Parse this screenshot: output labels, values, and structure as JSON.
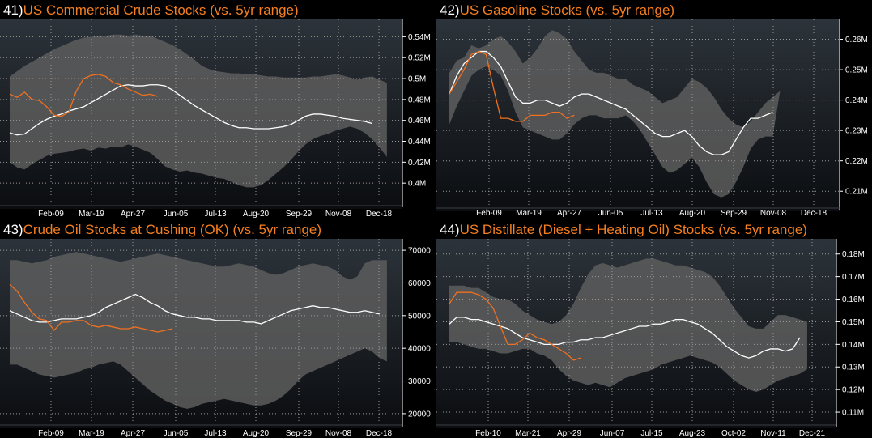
{
  "colors": {
    "band": "#5d5d5d",
    "avg": "#ffffff",
    "current": "#f07020",
    "title": "#f57f1f",
    "grid": "#9a9a9a"
  },
  "chart_data": [
    {
      "number": "41)",
      "title": "US Commercial Crude Stocks (vs. 5yr range)",
      "type": "area",
      "x_labels": [
        "Feb-09",
        "Mar-19",
        "Apr-27",
        "Jun-05",
        "Jul-13",
        "Aug-20",
        "Sep-29",
        "Nov-08",
        "Dec-18"
      ],
      "y_ticks": [
        0.4,
        0.42,
        0.44,
        0.46,
        0.48,
        0.5,
        0.52,
        0.54
      ],
      "y_tick_labels": [
        "0.4M",
        "0.42M",
        "0.44M",
        "0.46M",
        "0.48M",
        "0.5M",
        "0.52M",
        "0.54M"
      ],
      "ylim": [
        0.38,
        0.555
      ],
      "xlim": [
        0,
        52
      ],
      "band_high": [
        0.502,
        0.507,
        0.512,
        0.516,
        0.52,
        0.524,
        0.528,
        0.531,
        0.534,
        0.537,
        0.539,
        0.54,
        0.541,
        0.541,
        0.542,
        0.542,
        0.541,
        0.542,
        0.541,
        0.541,
        0.538,
        0.535,
        0.532,
        0.528,
        0.523,
        0.518,
        0.512,
        0.509,
        0.507,
        0.506,
        0.505,
        0.505,
        0.504,
        0.504,
        0.503,
        0.502,
        0.502,
        0.501,
        0.501,
        0.501,
        0.501,
        0.502,
        0.502,
        0.503,
        0.504,
        0.503,
        0.501,
        0.499,
        0.501,
        0.502,
        0.499,
        0.496
      ],
      "band_low": [
        0.42,
        0.415,
        0.413,
        0.418,
        0.422,
        0.426,
        0.428,
        0.429,
        0.43,
        0.432,
        0.433,
        0.431,
        0.434,
        0.433,
        0.435,
        0.434,
        0.437,
        0.435,
        0.432,
        0.429,
        0.423,
        0.416,
        0.413,
        0.411,
        0.412,
        0.41,
        0.409,
        0.407,
        0.405,
        0.404,
        0.401,
        0.398,
        0.396,
        0.396,
        0.398,
        0.403,
        0.409,
        0.415,
        0.422,
        0.43,
        0.437,
        0.442,
        0.445,
        0.447,
        0.45,
        0.452,
        0.454,
        0.452,
        0.448,
        0.442,
        0.434,
        0.425
      ],
      "avg": [
        0.448,
        0.446,
        0.447,
        0.452,
        0.457,
        0.461,
        0.464,
        0.466,
        0.469,
        0.471,
        0.473,
        0.477,
        0.481,
        0.485,
        0.489,
        0.493,
        0.494,
        0.493,
        0.493,
        0.494,
        0.494,
        0.493,
        0.489,
        0.484,
        0.479,
        0.474,
        0.47,
        0.466,
        0.462,
        0.458,
        0.455,
        0.453,
        0.453,
        0.452,
        0.452,
        0.452,
        0.453,
        0.454,
        0.456,
        0.46,
        0.464,
        0.466,
        0.466,
        0.465,
        0.464,
        0.462,
        0.461,
        0.46,
        0.459,
        0.457
      ],
      "current_start": 0,
      "current": [
        0.485,
        0.482,
        0.487,
        0.48,
        0.479,
        0.473,
        0.465,
        0.464,
        0.468,
        0.488,
        0.5,
        0.503,
        0.504,
        0.502,
        0.496,
        0.494,
        0.49,
        0.487,
        0.484,
        0.485,
        0.483
      ]
    },
    {
      "number": "42)",
      "title": "US Gasoline Stocks (vs. 5yr range)",
      "type": "area",
      "x_labels": [
        "Feb-09",
        "Mar-19",
        "Apr-27",
        "Jun-05",
        "Jul-13",
        "Aug-20",
        "Sep-29",
        "Nov-08",
        "Dec-18"
      ],
      "y_ticks": [
        0.21,
        0.22,
        0.23,
        0.24,
        0.25,
        0.26
      ],
      "y_tick_labels": [
        "0.21M",
        "0.22M",
        "0.23M",
        "0.24M",
        "0.25M",
        "0.26M"
      ],
      "ylim": [
        0.205,
        0.266
      ],
      "xlim": [
        0,
        52
      ],
      "band_high": [
        0.249,
        0.253,
        0.254,
        0.258,
        0.257,
        0.258,
        0.26,
        0.261,
        0.259,
        0.256,
        0.252,
        0.254,
        0.257,
        0.261,
        0.263,
        0.262,
        0.26,
        0.256,
        0.253,
        0.25,
        0.249,
        0.249,
        0.248,
        0.247,
        0.247,
        0.245,
        0.244,
        0.243,
        0.241,
        0.239,
        0.24,
        0.241,
        0.244,
        0.247,
        0.246,
        0.244,
        0.241,
        0.237,
        0.234,
        0.232,
        0.231,
        0.233,
        0.236,
        0.239,
        0.241,
        0.243
      ],
      "band_low": [
        0.232,
        0.238,
        0.243,
        0.248,
        0.25,
        0.251,
        0.25,
        0.248,
        0.243,
        0.236,
        0.231,
        0.23,
        0.229,
        0.228,
        0.227,
        0.227,
        0.229,
        0.232,
        0.234,
        0.235,
        0.235,
        0.234,
        0.234,
        0.234,
        0.235,
        0.233,
        0.23,
        0.226,
        0.222,
        0.218,
        0.216,
        0.217,
        0.219,
        0.221,
        0.218,
        0.213,
        0.209,
        0.208,
        0.209,
        0.213,
        0.218,
        0.224,
        0.227,
        0.228,
        0.228
      ],
      "avg": [
        0.242,
        0.248,
        0.252,
        0.254,
        0.256,
        0.256,
        0.254,
        0.251,
        0.246,
        0.241,
        0.239,
        0.239,
        0.24,
        0.24,
        0.239,
        0.238,
        0.239,
        0.241,
        0.242,
        0.242,
        0.241,
        0.24,
        0.239,
        0.238,
        0.237,
        0.235,
        0.233,
        0.231,
        0.229,
        0.228,
        0.228,
        0.229,
        0.23,
        0.228,
        0.225,
        0.223,
        0.222,
        0.222,
        0.223,
        0.227,
        0.231,
        0.234,
        0.234,
        0.235,
        0.236
      ],
      "current_start": 0,
      "current": [
        0.242,
        0.246,
        0.25,
        0.255,
        0.256,
        0.255,
        0.244,
        0.234,
        0.234,
        0.233,
        0.233,
        0.235,
        0.235,
        0.235,
        0.236,
        0.236,
        0.234,
        0.235
      ]
    },
    {
      "number": "43)",
      "title": "Crude Oil Stocks at Cushing (OK) (vs. 5yr range)",
      "type": "area",
      "x_labels": [
        "Feb-09",
        "Mar-19",
        "Apr-27",
        "Jun-05",
        "Jul-13",
        "Aug-20",
        "Sep-29",
        "Nov-08",
        "Dec-18"
      ],
      "y_ticks": [
        20000,
        30000,
        40000,
        50000,
        60000,
        70000
      ],
      "y_tick_labels": [
        "20000",
        "30000",
        "40000",
        "50000",
        "60000",
        "70000"
      ],
      "ylim": [
        17000,
        73000
      ],
      "xlim": [
        0,
        52
      ],
      "band_high": [
        67000,
        67000,
        66500,
        66000,
        66500,
        67000,
        68000,
        68500,
        69000,
        69500,
        69000,
        68500,
        68000,
        67500,
        67000,
        66500,
        67000,
        67500,
        68000,
        68500,
        69000,
        68500,
        68000,
        67500,
        67000,
        66500,
        66000,
        65500,
        65000,
        65000,
        65500,
        66000,
        65500,
        65000,
        64000,
        63000,
        62500,
        63000,
        64000,
        65000,
        65500,
        66000,
        65500,
        65000,
        64000,
        62000,
        61000,
        62000,
        66000,
        67000,
        67000,
        67000
      ],
      "band_low": [
        35000,
        35000,
        34000,
        33000,
        32000,
        31500,
        31000,
        31500,
        32000,
        32500,
        33500,
        34000,
        35000,
        35500,
        36000,
        35000,
        33000,
        31000,
        29000,
        27000,
        25500,
        24000,
        23000,
        22000,
        21500,
        22000,
        23000,
        23500,
        24000,
        24500,
        24000,
        23500,
        23000,
        22500,
        22500,
        23000,
        24000,
        25500,
        27500,
        30000,
        32000,
        33000,
        34000,
        35000,
        36000,
        37000,
        38000,
        39000,
        40000,
        39000,
        37000,
        36000
      ],
      "avg": [
        51500,
        50500,
        49500,
        48500,
        48000,
        48000,
        48500,
        49000,
        49000,
        49000,
        49500,
        50000,
        51000,
        52500,
        53500,
        54500,
        55500,
        56500,
        55500,
        54000,
        53000,
        51500,
        50500,
        50000,
        49500,
        49500,
        49000,
        49000,
        48500,
        48500,
        48500,
        48500,
        48000,
        48000,
        47500,
        48500,
        49500,
        50500,
        51500,
        52000,
        52500,
        53000,
        52500,
        52500,
        52000,
        51500,
        51000,
        51000,
        51500,
        51000,
        50500
      ],
      "current_start": 0,
      "current": [
        59500,
        57500,
        54000,
        51000,
        49000,
        48500,
        45500,
        48000,
        48000,
        48500,
        48500,
        47000,
        46500,
        47000,
        46500,
        46000,
        46000,
        46500,
        46000,
        45500,
        45000,
        45500,
        46000
      ]
    },
    {
      "number": "44)",
      "title": "US Distillate (Diesel + Heating Oil) Stocks (vs. 5yr range)",
      "type": "area",
      "x_labels": [
        "Feb-10",
        "Mar-21",
        "Apr-29",
        "Jun-07",
        "Jul-15",
        "Aug-23",
        "Oct-02",
        "Nov-11",
        "Dec-21"
      ],
      "y_ticks": [
        0.11,
        0.12,
        0.13,
        0.14,
        0.15,
        0.16,
        0.17,
        0.18
      ],
      "y_tick_labels": [
        "0.11M",
        "0.12M",
        "0.13M",
        "0.14M",
        "0.15M",
        "0.16M",
        "0.17M",
        "0.18M"
      ],
      "ylim": [
        0.105,
        0.186
      ],
      "xlim": [
        0,
        52
      ],
      "band_high": [
        0.166,
        0.166,
        0.166,
        0.165,
        0.165,
        0.163,
        0.161,
        0.16,
        0.16,
        0.158,
        0.155,
        0.153,
        0.151,
        0.15,
        0.149,
        0.15,
        0.153,
        0.158,
        0.165,
        0.171,
        0.175,
        0.176,
        0.175,
        0.174,
        0.175,
        0.176,
        0.177,
        0.178,
        0.178,
        0.177,
        0.176,
        0.175,
        0.175,
        0.174,
        0.173,
        0.172,
        0.17,
        0.166,
        0.161,
        0.156,
        0.152,
        0.148,
        0.147,
        0.147,
        0.15,
        0.153,
        0.153,
        0.152,
        0.151,
        0.15
      ],
      "band_low": [
        0.141,
        0.141,
        0.14,
        0.139,
        0.138,
        0.138,
        0.137,
        0.136,
        0.136,
        0.137,
        0.138,
        0.138,
        0.136,
        0.135,
        0.133,
        0.129,
        0.126,
        0.124,
        0.123,
        0.122,
        0.123,
        0.122,
        0.121,
        0.123,
        0.125,
        0.126,
        0.127,
        0.128,
        0.129,
        0.131,
        0.132,
        0.133,
        0.134,
        0.135,
        0.134,
        0.133,
        0.132,
        0.13,
        0.127,
        0.124,
        0.122,
        0.12,
        0.119,
        0.12,
        0.122,
        0.124,
        0.125,
        0.126,
        0.127,
        0.129
      ],
      "avg": [
        0.149,
        0.152,
        0.152,
        0.151,
        0.151,
        0.15,
        0.149,
        0.148,
        0.147,
        0.145,
        0.143,
        0.142,
        0.141,
        0.14,
        0.14,
        0.14,
        0.141,
        0.141,
        0.142,
        0.142,
        0.143,
        0.143,
        0.144,
        0.145,
        0.146,
        0.147,
        0.148,
        0.148,
        0.149,
        0.149,
        0.15,
        0.151,
        0.151,
        0.15,
        0.149,
        0.147,
        0.145,
        0.142,
        0.139,
        0.137,
        0.135,
        0.134,
        0.135,
        0.137,
        0.138,
        0.138,
        0.137,
        0.138,
        0.143
      ],
      "current_start": 0,
      "current": [
        0.158,
        0.163,
        0.163,
        0.163,
        0.162,
        0.16,
        0.156,
        0.148,
        0.14,
        0.14,
        0.142,
        0.145,
        0.143,
        0.142,
        0.14,
        0.138,
        0.136,
        0.133,
        0.134
      ]
    }
  ]
}
